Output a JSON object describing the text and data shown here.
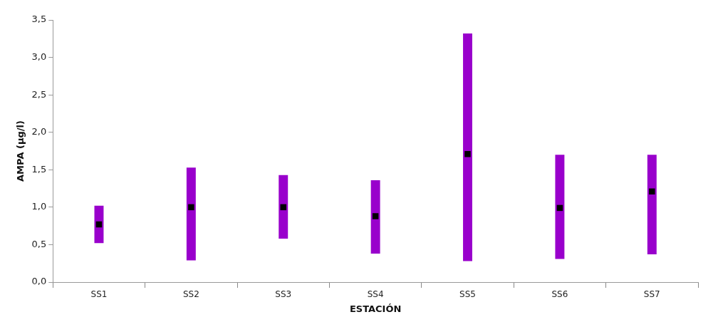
{
  "chart_data": {
    "type": "bar",
    "xlabel": "ESTACIÓN",
    "ylabel": "AMPA (µg/l)",
    "categories": [
      "SS1",
      "SS2",
      "SS3",
      "SS4",
      "SS5",
      "SS6",
      "SS7"
    ],
    "series": [
      {
        "color": "#9900cc",
        "base": [
          0.52,
          0.29,
          0.58,
          0.38,
          0.28,
          0.31,
          0.37
        ],
        "values": [
          0.5,
          1.24,
          0.85,
          0.98,
          3.04,
          1.39,
          1.33
        ]
      },
      {
        "type": "scatter",
        "color": "#000000",
        "x": [
          "SS1",
          "SS2",
          "SS3",
          "SS4",
          "SS5",
          "SS6",
          "SS7"
        ],
        "values": [
          0.77,
          1.0,
          1.0,
          0.88,
          1.71,
          0.99,
          1.21
        ]
      }
    ],
    "marker": "square",
    "ylim": [
      0,
      3.5
    ],
    "yticks": [
      {
        "value": 0,
        "label": "0,0"
      },
      {
        "value": 0.5,
        "label": "0,5"
      },
      {
        "value": 1,
        "label": "1,0"
      },
      {
        "value": 1.5,
        "label": "1,5"
      },
      {
        "value": 2,
        "label": "2,0"
      },
      {
        "value": 2.5,
        "label": "2,5"
      },
      {
        "value": 3,
        "label": "3,0"
      },
      {
        "value": 3.5,
        "label": "3,5"
      }
    ],
    "grid": false,
    "legend": false
  }
}
